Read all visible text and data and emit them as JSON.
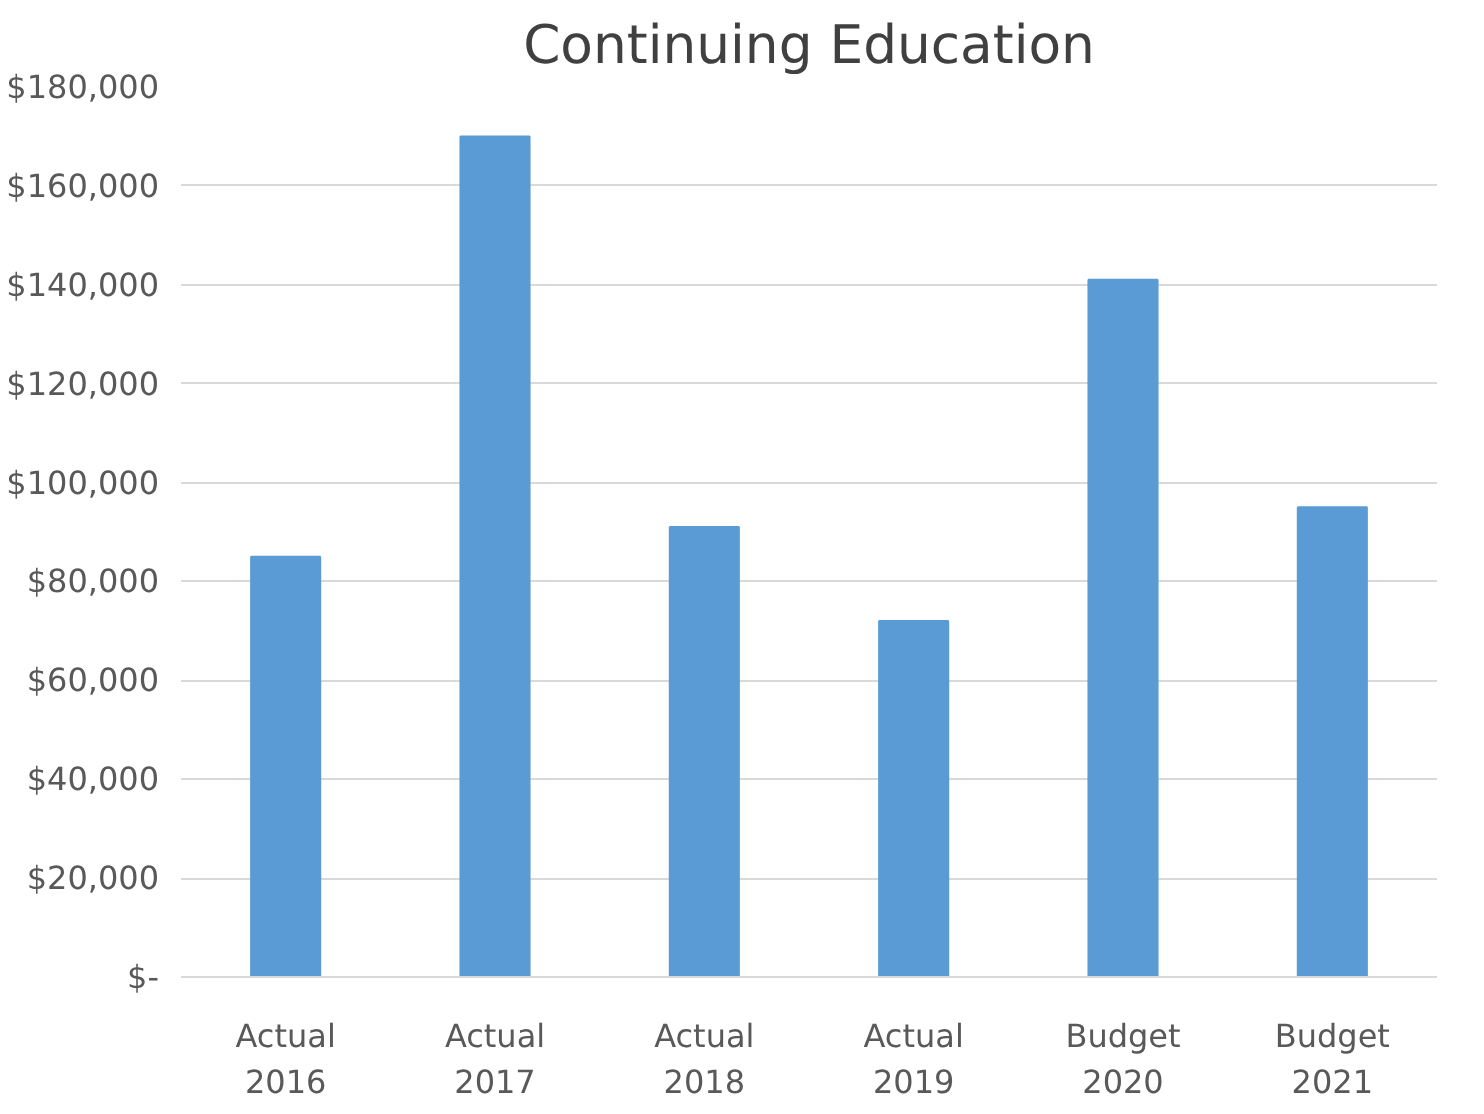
{
  "chart_data": {
    "type": "bar",
    "title": "Continuing Education",
    "categories": [
      "Actual\n2016",
      "Actual\n2017",
      "Actual\n2018",
      "Actual\n2019",
      "Budget\n2020",
      "Budget\n2021"
    ],
    "values": [
      85000,
      170000,
      91000,
      72000,
      141000,
      95000
    ],
    "color": "#5b9bd5",
    "ylim": [
      0,
      180000
    ],
    "yticks": [
      {
        "value": 0,
        "label": "$-"
      },
      {
        "value": 20000,
        "label": "$20,000"
      },
      {
        "value": 40000,
        "label": "$40,000"
      },
      {
        "value": 60000,
        "label": "$60,000"
      },
      {
        "value": 80000,
        "label": "$80,000"
      },
      {
        "value": 100000,
        "label": "$100,000"
      },
      {
        "value": 120000,
        "label": "$120,000"
      },
      {
        "value": 140000,
        "label": "$140,000"
      },
      {
        "value": 160000,
        "label": "$160,000"
      },
      {
        "value": 180000,
        "label": "$180,000"
      }
    ],
    "grid": "y"
  }
}
